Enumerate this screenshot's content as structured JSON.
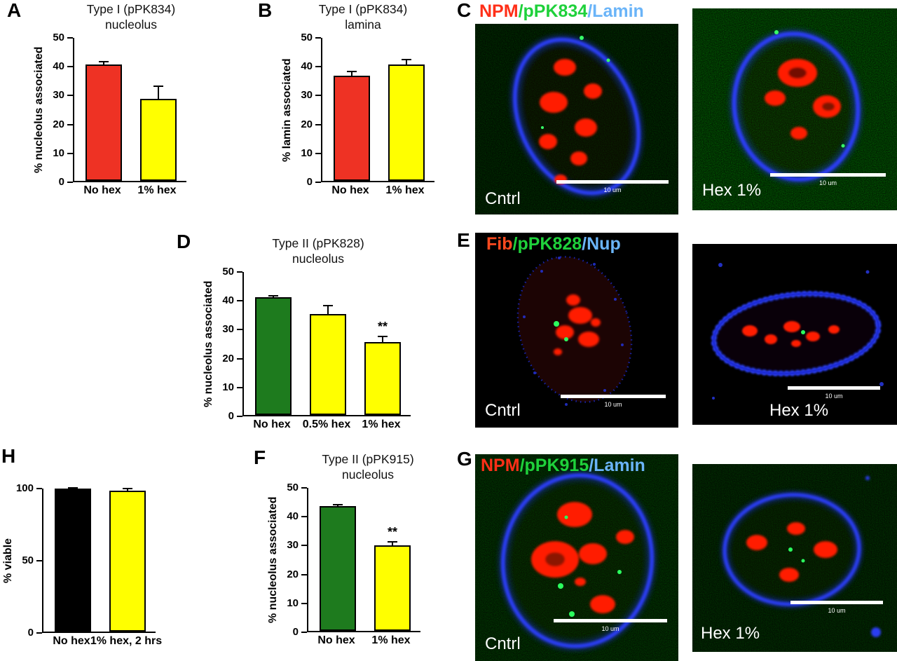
{
  "panels": {
    "a": {
      "letter": "A"
    },
    "b": {
      "letter": "B"
    },
    "c": {
      "letter": "C"
    },
    "d": {
      "letter": "D"
    },
    "e": {
      "letter": "E"
    },
    "f": {
      "letter": "F"
    },
    "g": {
      "letter": "G"
    },
    "h": {
      "letter": "H"
    }
  },
  "chart_data": [
    {
      "panel": "A",
      "type": "bar",
      "title_lines": [
        "Type I (pPK834)",
        "nucleolus"
      ],
      "ylabel": "% nucleolus associated",
      "ylim": [
        0,
        50
      ],
      "yticks": [
        0,
        10,
        20,
        30,
        40,
        50
      ],
      "categories": [
        "No hex",
        "1% hex"
      ],
      "values": [
        40.3,
        28.5
      ],
      "errors": [
        1.3,
        4.6
      ],
      "colors": [
        "#ee3224",
        "#ffff00"
      ],
      "annotations": [
        "",
        ""
      ]
    },
    {
      "panel": "B",
      "type": "bar",
      "title_lines": [
        "Type I (pPK834)",
        "lamina"
      ],
      "ylabel": "% lamin associated",
      "ylim": [
        0,
        50
      ],
      "yticks": [
        0,
        10,
        20,
        30,
        40,
        50
      ],
      "categories": [
        "No hex",
        "1% hex"
      ],
      "values": [
        36.4,
        40.2
      ],
      "errors": [
        1.7,
        2.0
      ],
      "colors": [
        "#ee3224",
        "#ffff00"
      ],
      "annotations": [
        "",
        ""
      ]
    },
    {
      "panel": "D",
      "type": "bar",
      "title_lines": [
        "Type II (pPK828)",
        "nucleolus"
      ],
      "ylabel": "% nucleolus associated",
      "ylim": [
        0,
        50
      ],
      "yticks": [
        0,
        10,
        20,
        30,
        40,
        50
      ],
      "categories": [
        "No hex",
        "0.5% hex",
        "1% hex"
      ],
      "values": [
        40.8,
        34.9,
        25.2
      ],
      "errors": [
        0.8,
        3.2,
        2.2
      ],
      "colors": [
        "#1e7b1e",
        "#ffff00",
        "#ffff00"
      ],
      "annotations": [
        "",
        "",
        "**"
      ]
    },
    {
      "panel": "F",
      "type": "bar",
      "title_lines": [
        "Type II (pPK915)",
        "nucleolus"
      ],
      "ylabel": "% nucleolus associated",
      "ylim": [
        0,
        50
      ],
      "yticks": [
        0,
        10,
        20,
        30,
        40,
        50
      ],
      "categories": [
        "No hex",
        "1% hex"
      ],
      "values": [
        43.2,
        29.6
      ],
      "errors": [
        0.7,
        1.5
      ],
      "colors": [
        "#1e7b1e",
        "#ffff00"
      ],
      "annotations": [
        "",
        "**"
      ]
    },
    {
      "panel": "H",
      "type": "bar",
      "title_lines": [],
      "ylabel": "% viable",
      "ylim": [
        0,
        100
      ],
      "yticks": [
        0,
        50,
        100
      ],
      "categories": [
        "No hex",
        "1% hex, 2 hrs"
      ],
      "values": [
        98.8,
        97.5
      ],
      "errors": [
        1.2,
        2.2
      ],
      "colors": [
        "#000000",
        "#ffff00"
      ],
      "annotations": [
        "",
        ""
      ]
    }
  ],
  "micro_panels": {
    "c": {
      "legend": [
        {
          "text": "NPM",
          "color": "#ff2f18"
        },
        {
          "text": "/pPK834",
          "color": "#1fd13b"
        },
        {
          "text": "/Lamin",
          "color": "#6ab4f8"
        }
      ],
      "images": [
        {
          "label": "Cntrl",
          "scalebar_label": "10 um"
        },
        {
          "label": "Hex 1%",
          "scalebar_label": "10 um"
        }
      ]
    },
    "e": {
      "legend": [
        {
          "text": "Fib",
          "color": "#ff4a1f"
        },
        {
          "text": "/pPK828",
          "color": "#1fd13b"
        },
        {
          "text": "/Nup",
          "color": "#6ab4f8"
        }
      ],
      "images": [
        {
          "label": "Cntrl",
          "scalebar_label": "10 um"
        },
        {
          "label": "Hex 1%",
          "scalebar_label": "10 um"
        }
      ]
    },
    "g": {
      "legend": [
        {
          "text": "NPM",
          "color": "#ff2f18"
        },
        {
          "text": "/pPK915",
          "color": "#1fd13b"
        },
        {
          "text": "/Lamin",
          "color": "#6ab4f8"
        }
      ],
      "images": [
        {
          "label": "Cntrl",
          "scalebar_label": "10 um"
        },
        {
          "label": "Hex 1%",
          "scalebar_label": "10 um"
        }
      ]
    }
  }
}
